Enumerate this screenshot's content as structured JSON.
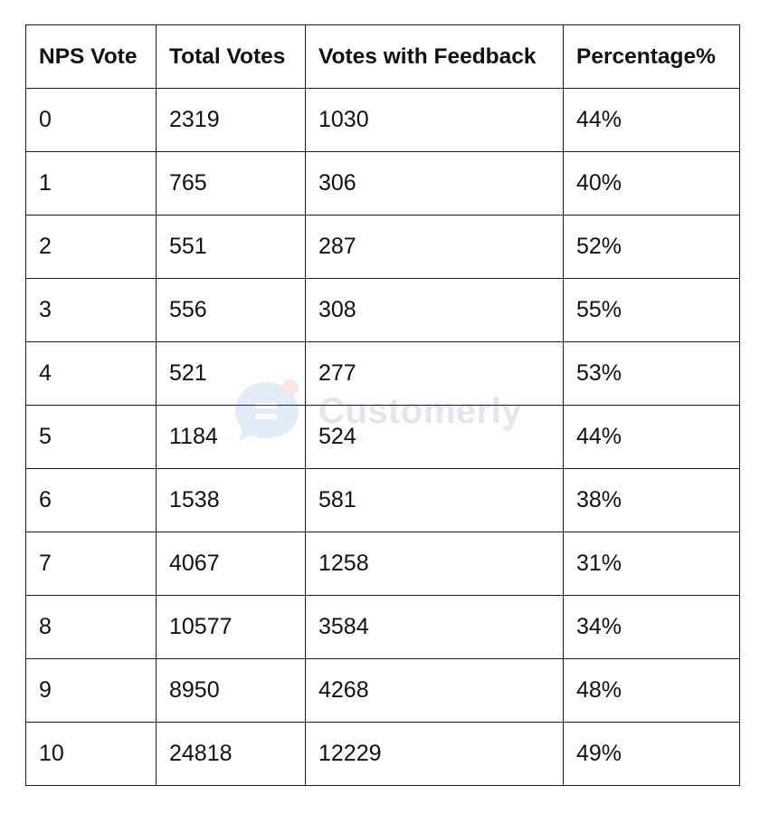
{
  "table": {
    "headers": [
      "NPS Vote",
      "Total Votes",
      "Votes with Feedback",
      "Percentage%"
    ],
    "rows": [
      [
        "0",
        "2319",
        "1030",
        "44%"
      ],
      [
        "1",
        "765",
        "306",
        "40%"
      ],
      [
        "2",
        "551",
        "287",
        "52%"
      ],
      [
        "3",
        "556",
        "308",
        "55%"
      ],
      [
        "4",
        "521",
        "277",
        "53%"
      ],
      [
        "5",
        "1184",
        "524",
        "44%"
      ],
      [
        "6",
        "1538",
        "581",
        "38%"
      ],
      [
        "7",
        "4067",
        "1258",
        "31%"
      ],
      [
        "8",
        "10577",
        "3584",
        "34%"
      ],
      [
        "9",
        "8950",
        "4268",
        "48%"
      ],
      [
        "10",
        "24818",
        "12229",
        "49%"
      ]
    ]
  },
  "watermark": {
    "text": "Customerly",
    "icon": "customerly-logo-icon",
    "color": "#2a4f8a"
  }
}
